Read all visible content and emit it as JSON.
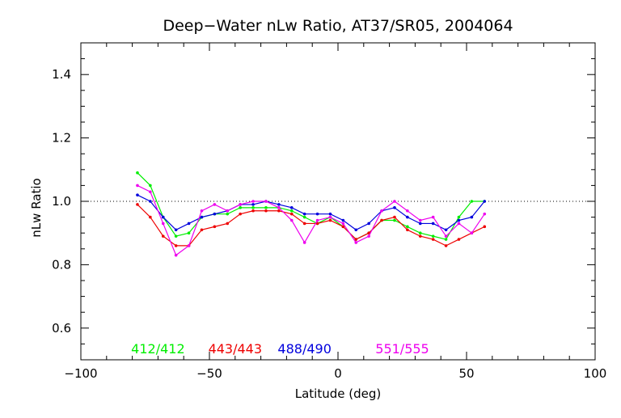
{
  "chart_data": {
    "type": "line",
    "title": "Deep−Water nLw Ratio, AT37/SR05, 2004064",
    "xlabel": "Latitude (deg)",
    "ylabel": "nLw Ratio",
    "xlim": [
      -100,
      100
    ],
    "ylim": [
      0.5,
      1.5
    ],
    "x_ticks": [
      -100,
      -50,
      0,
      50,
      100
    ],
    "x_tick_labels": [
      "−100",
      "−50",
      "0",
      "50",
      "100"
    ],
    "y_ticks": [
      0.6,
      0.8,
      1.0,
      1.2,
      1.4
    ],
    "y_tick_labels": [
      "0.6",
      "0.8",
      "1.0",
      "1.2",
      "1.4"
    ],
    "reference_line": {
      "y": 1.0,
      "style": "dotted"
    },
    "legend_placement": "bottom, inside plot",
    "x": [
      -78,
      -73,
      -68,
      -63,
      -58,
      -53,
      -48,
      -43,
      -38,
      -33,
      -28,
      -23,
      -18,
      -13,
      -8,
      -3,
      2,
      7,
      12,
      17,
      22,
      27,
      32,
      37,
      42,
      47,
      52,
      57
    ],
    "series": [
      {
        "name": "412/412",
        "color": "#00ee00",
        "values": [
          1.09,
          1.05,
          0.95,
          0.89,
          0.9,
          0.95,
          0.96,
          0.96,
          0.98,
          0.98,
          0.98,
          0.98,
          0.97,
          0.95,
          0.93,
          0.95,
          0.92,
          0.88,
          0.9,
          0.94,
          0.94,
          0.92,
          0.9,
          0.89,
          0.88,
          0.95,
          1.0,
          1.0
        ]
      },
      {
        "name": "443/443",
        "color": "#ee0000",
        "values": [
          0.99,
          0.95,
          0.89,
          0.86,
          0.86,
          0.91,
          0.92,
          0.93,
          0.96,
          0.97,
          0.97,
          0.97,
          0.96,
          0.93,
          0.93,
          0.94,
          0.92,
          0.88,
          0.9,
          0.94,
          0.95,
          0.91,
          0.89,
          0.88,
          0.86,
          0.88,
          0.9,
          0.92
        ]
      },
      {
        "name": "488/490",
        "color": "#0000dd",
        "values": [
          1.02,
          1.0,
          0.95,
          0.91,
          0.93,
          0.95,
          0.96,
          0.97,
          0.99,
          0.99,
          1.0,
          0.99,
          0.98,
          0.96,
          0.96,
          0.96,
          0.94,
          0.91,
          0.93,
          0.97,
          0.98,
          0.95,
          0.93,
          0.93,
          0.91,
          0.94,
          0.95,
          1.0
        ]
      },
      {
        "name": "551/555",
        "color": "#ee00ee",
        "values": [
          1.05,
          1.03,
          0.93,
          0.83,
          0.86,
          0.97,
          0.99,
          0.97,
          0.99,
          1.0,
          1.0,
          0.98,
          0.94,
          0.87,
          0.94,
          0.95,
          0.93,
          0.87,
          0.89,
          0.97,
          1.0,
          0.97,
          0.94,
          0.95,
          0.89,
          0.93,
          0.9,
          0.96
        ]
      }
    ]
  }
}
